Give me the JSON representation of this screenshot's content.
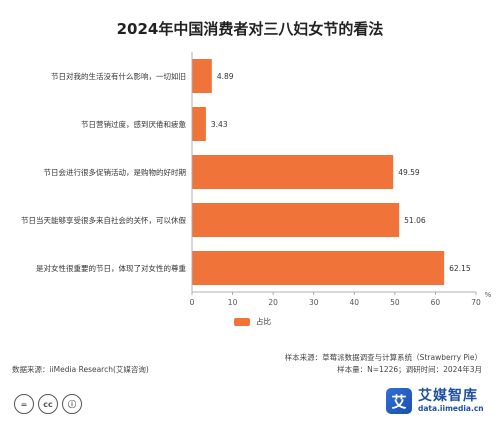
{
  "title": "2024年中国消费者对三八妇女节的看法",
  "chart_data": {
    "type": "bar",
    "orientation": "horizontal",
    "categories": [
      "节日对我的生活没有什么影响，一切如旧",
      "节日营销过度，感到厌倦和疲惫",
      "节日会进行很多促销活动，是购物的好时期",
      "节日当天能够享受很多来自社会的关怀，可以休假",
      "是对女性很重要的节日，体现了对女性的尊重"
    ],
    "series": [
      {
        "name": "占比",
        "values": [
          4.89,
          3.43,
          49.59,
          51.06,
          62.15
        ]
      }
    ],
    "xlim": [
      0,
      70
    ],
    "xticks": [
      0,
      10,
      20,
      30,
      40,
      50,
      60,
      70
    ],
    "unit": "%",
    "legend_position": "bottom"
  },
  "colors": {
    "bar": "#f0743a",
    "axis": "#999999",
    "logo": "#1d4fa8"
  },
  "footer": {
    "source": "数据来源：iiMedia Research(艾媒咨询)",
    "sample_source": "样本来源：草莓派数据调查与计算系统（Strawberry Pie）",
    "sample_size": "样本量：N=1226；调研时间：2024年3月"
  },
  "logo": {
    "name": "艾媒智库",
    "url": "data.iimedia.cn",
    "mark": "艾"
  },
  "cc_icons": [
    "=",
    "cc",
    "ⓘ"
  ]
}
